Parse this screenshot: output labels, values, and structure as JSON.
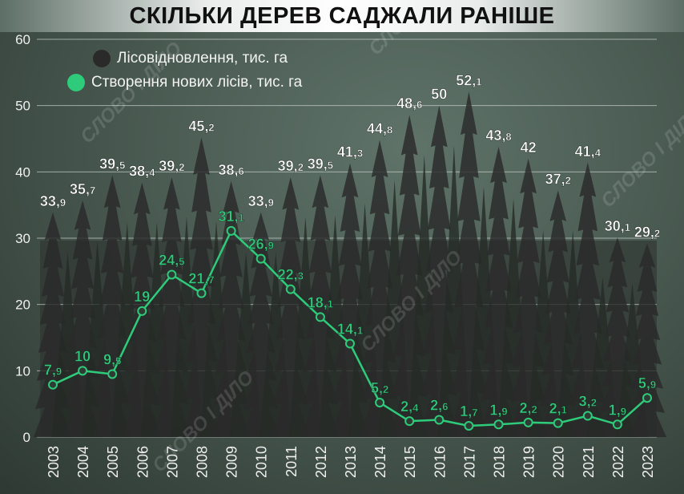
{
  "chart_data": {
    "type": "line",
    "title": "СКІЛЬКИ ДЕРЕВ САДЖАЛИ РАНІШЕ",
    "categories": [
      "2003",
      "2004",
      "2005",
      "2006",
      "2007",
      "2008",
      "2009",
      "2010",
      "2011",
      "2012",
      "2013",
      "2014",
      "2015",
      "2016",
      "2017",
      "2018",
      "2019",
      "2020",
      "2021",
      "2022",
      "2023"
    ],
    "series": [
      {
        "name": "Лісовідновлення, тис. га",
        "color": "#2a2a2a",
        "style": "tree-silhouettes",
        "values": [
          33.9,
          35.7,
          39.5,
          38.4,
          39.2,
          45.2,
          38.6,
          33.9,
          39.2,
          39.5,
          41.3,
          44.8,
          48.6,
          50,
          52.1,
          43.8,
          42,
          37.2,
          41.4,
          30.1,
          29.2
        ]
      },
      {
        "name": "Створення нових лісів, тис. га",
        "color": "#2ecc7a",
        "style": "line-with-markers",
        "values": [
          7.9,
          10,
          9.5,
          19,
          24.5,
          21.7,
          31.1,
          26.9,
          22.3,
          18.1,
          14.1,
          5.2,
          2.4,
          2.6,
          1.7,
          1.9,
          2.2,
          2.1,
          3.2,
          1.9,
          5.9
        ]
      }
    ],
    "ylim": [
      0,
      60
    ],
    "yticks": [
      0,
      10,
      20,
      30,
      40,
      50,
      60
    ],
    "grid": true,
    "legend_position": "top-left",
    "watermark": "СЛОВО І ДІЛО"
  }
}
